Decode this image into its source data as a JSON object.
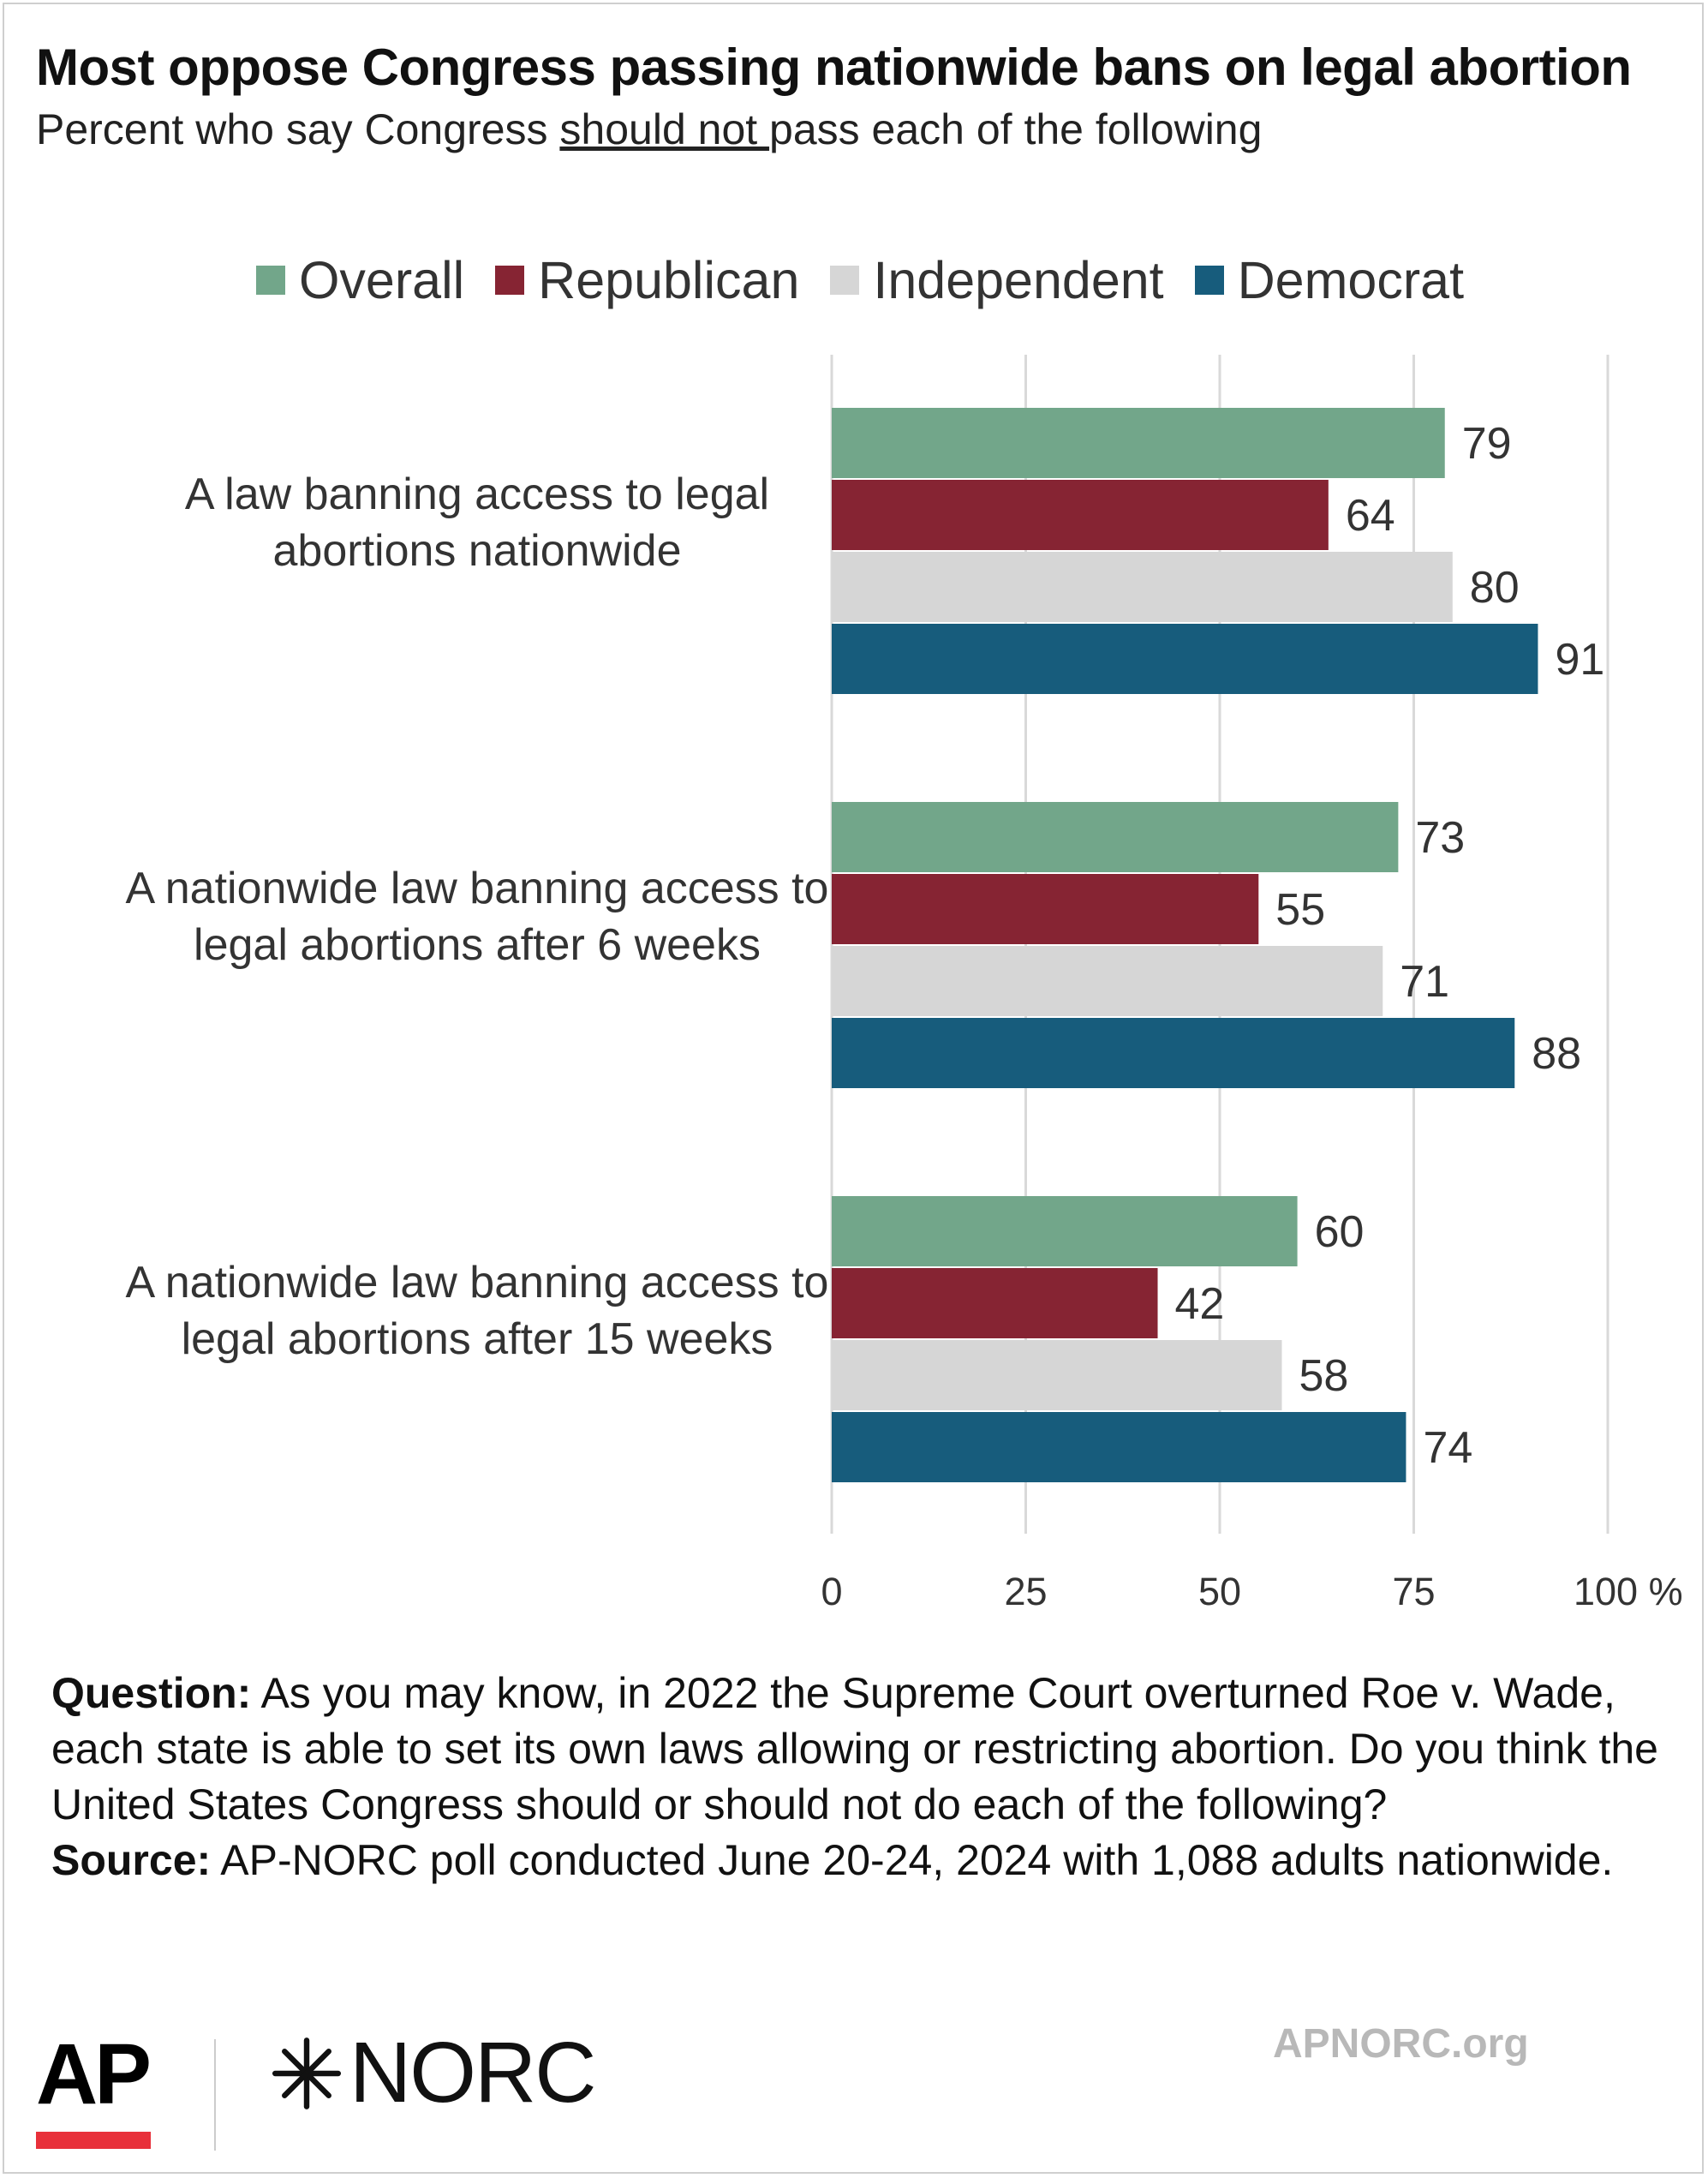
{
  "header": {
    "title": "Most oppose Congress passing nationwide bans on legal abortion",
    "subtitle_prefix": "Percent who say Congress ",
    "subtitle_emphasis": "should not ",
    "subtitle_suffix": "pass each of the following"
  },
  "colors": {
    "overall": "#72a68a",
    "republican": "#862433",
    "independent": "#d6d6d6",
    "democrat": "#175c7c",
    "gridline": "#d9d9d9"
  },
  "chart_data": {
    "type": "bar",
    "orientation": "horizontal",
    "title": "Most oppose Congress passing nationwide bans on legal abortion",
    "subtitle": "Percent who say Congress should not pass each of the following",
    "categories": [
      [
        "A law banning access to legal",
        "abortions nationwide"
      ],
      [
        "A nationwide law banning access to",
        "legal abortions after 6 weeks"
      ],
      [
        "A nationwide law banning access to",
        "legal abortions after 15 weeks"
      ]
    ],
    "series": [
      {
        "name": "Overall",
        "color": "#72a68a",
        "values": [
          79,
          73,
          60
        ]
      },
      {
        "name": "Republican",
        "color": "#862433",
        "values": [
          64,
          55,
          42
        ]
      },
      {
        "name": "Independent",
        "color": "#d6d6d6",
        "values": [
          80,
          71,
          58
        ]
      },
      {
        "name": "Democrat",
        "color": "#175c7c",
        "values": [
          91,
          88,
          74
        ]
      }
    ],
    "xlim": [
      0,
      100
    ],
    "ticks": [
      0,
      25,
      50,
      75,
      100
    ],
    "tick_labels": [
      "0",
      "25",
      "50",
      "75",
      "100 %"
    ],
    "grid": true,
    "legend_position": "top-center"
  },
  "notes": {
    "question_label": "Question:",
    "question_text": " As you may know, in 2022 the Supreme Court overturned Roe v. Wade, each state is able to set its own laws allowing or restricting abortion. Do you think the United States Congress should or should not do each of the following?",
    "source_label": "Source:",
    "source_text": " AP-NORC poll conducted June 20-24, 2024 with 1,088 adults nationwide."
  },
  "footer": {
    "ap_logo": "AP",
    "norc_logo": "NORC",
    "site": "APNORC.org",
    "ap_accent": "#e8303a"
  }
}
